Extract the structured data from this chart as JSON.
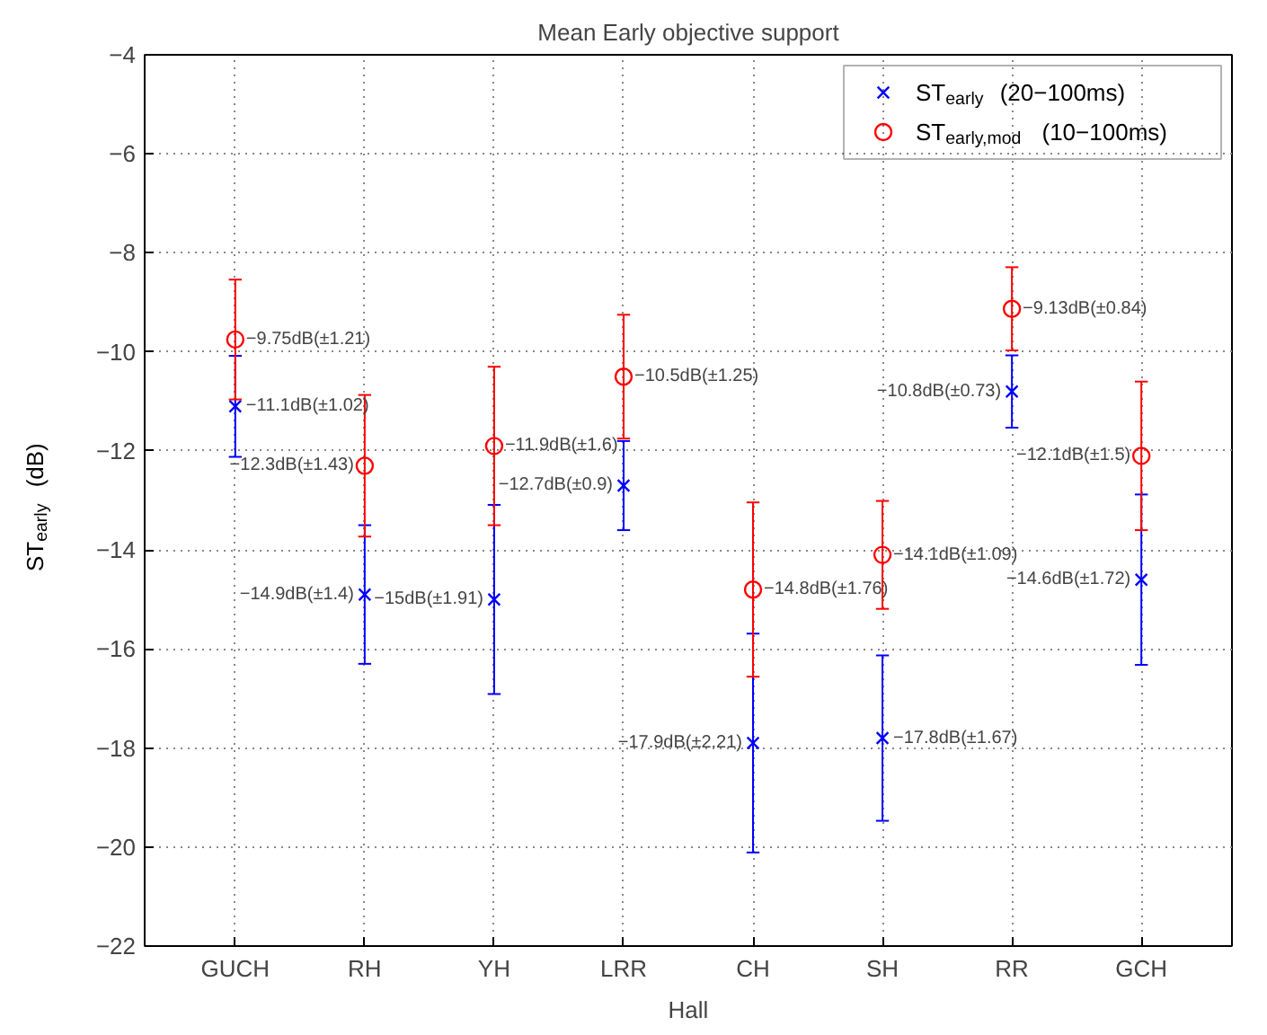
{
  "chart_data": {
    "type": "scatter",
    "title": "Mean Early objective support",
    "xlabel": "Hall",
    "ylabel": "ST$_{early}$(dB)",
    "categories": [
      "GUCH",
      "RH",
      "YH",
      "LRR",
      "CH",
      "SH",
      "RR",
      "GCH"
    ],
    "ylim": [
      -22,
      -4
    ],
    "yticks": [
      {
        "value": -22,
        "label": "−22"
      },
      {
        "value": -20,
        "label": "−20"
      },
      {
        "value": -18,
        "label": "−18"
      },
      {
        "value": -16,
        "label": "−16"
      },
      {
        "value": -14,
        "label": "−14"
      },
      {
        "value": -12,
        "label": "−12"
      },
      {
        "value": -10,
        "label": "−10"
      },
      {
        "value": -8,
        "label": "−8"
      },
      {
        "value": -6,
        "label": "−6"
      },
      {
        "value": -4,
        "label": "−4"
      }
    ],
    "grid": true,
    "legend": "top right",
    "series": [
      {
        "name": "ST$_{early}$ (20−100ms)",
        "color": "#0000ff",
        "marker": "cross",
        "values": [
          -11.1,
          -14.9,
          -15,
          -12.7,
          -17.9,
          -17.8,
          -10.8,
          -14.6
        ],
        "errors": [
          1.02,
          1.4,
          1.91,
          0.9,
          2.21,
          1.67,
          0.73,
          1.72
        ],
        "value_labels": [
          "−11.1dB(±1.02)",
          "−14.9dB(±1.4)",
          "−15dB(±1.91)",
          "−12.7dB(±0.9)",
          "−17.9dB(±2.21)",
          "−17.8dB(±1.67)",
          "−10.8dB(±0.73)",
          "−14.6dB(±1.72)"
        ]
      },
      {
        "name": "ST$_{early,mod}$ (10−100ms)",
        "color": "#ff0000",
        "marker": "circle",
        "values": [
          -9.75,
          -12.3,
          -11.9,
          -10.5,
          -14.8,
          -14.1,
          -9.13,
          -12.1
        ],
        "errors": [
          1.21,
          1.43,
          1.6,
          1.25,
          1.76,
          1.09,
          0.84,
          1.5
        ],
        "value_labels": [
          "−9.75dB(±1.21)",
          "−12.3dB(±1.43)",
          "−11.9dB(±1.6)",
          "−10.5dB(±1.25)",
          "−14.8dB(±1.76)",
          "−14.1dB(±1.09)",
          "−9.13dB(±0.84)",
          "−12.1dB(±1.5)"
        ]
      }
    ]
  }
}
